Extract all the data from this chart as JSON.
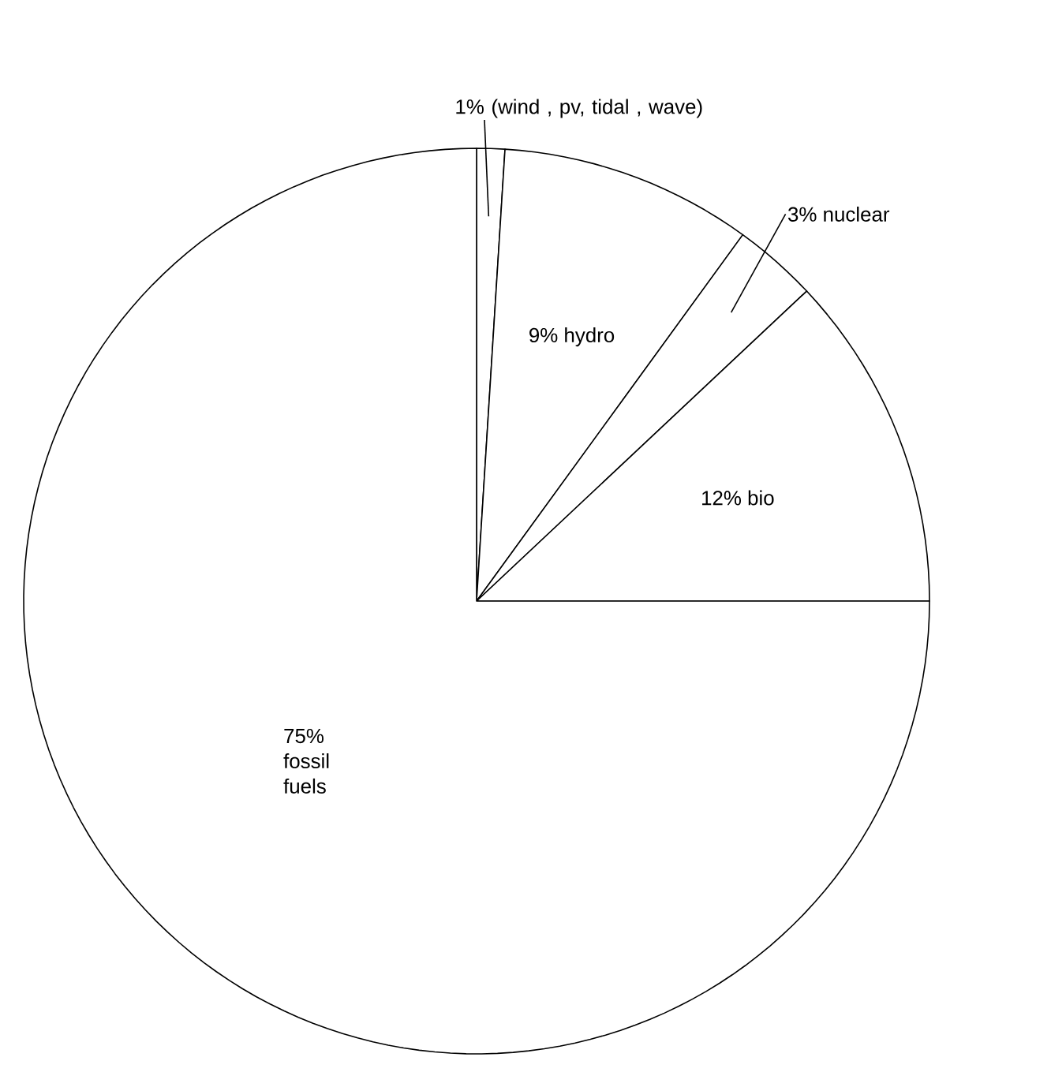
{
  "chart_data": {
    "type": "pie",
    "categories": [
      "1% (wind , pv, tidal , wave)",
      "9% hydro",
      "3% nuclear",
      "12% bio",
      "75% fossil fuels"
    ],
    "values": [
      1,
      9,
      3,
      12,
      75
    ],
    "colors": [
      "#ffffff",
      "#ffffff",
      "#ffffff",
      "#ffffff",
      "#ffffff"
    ]
  }
}
